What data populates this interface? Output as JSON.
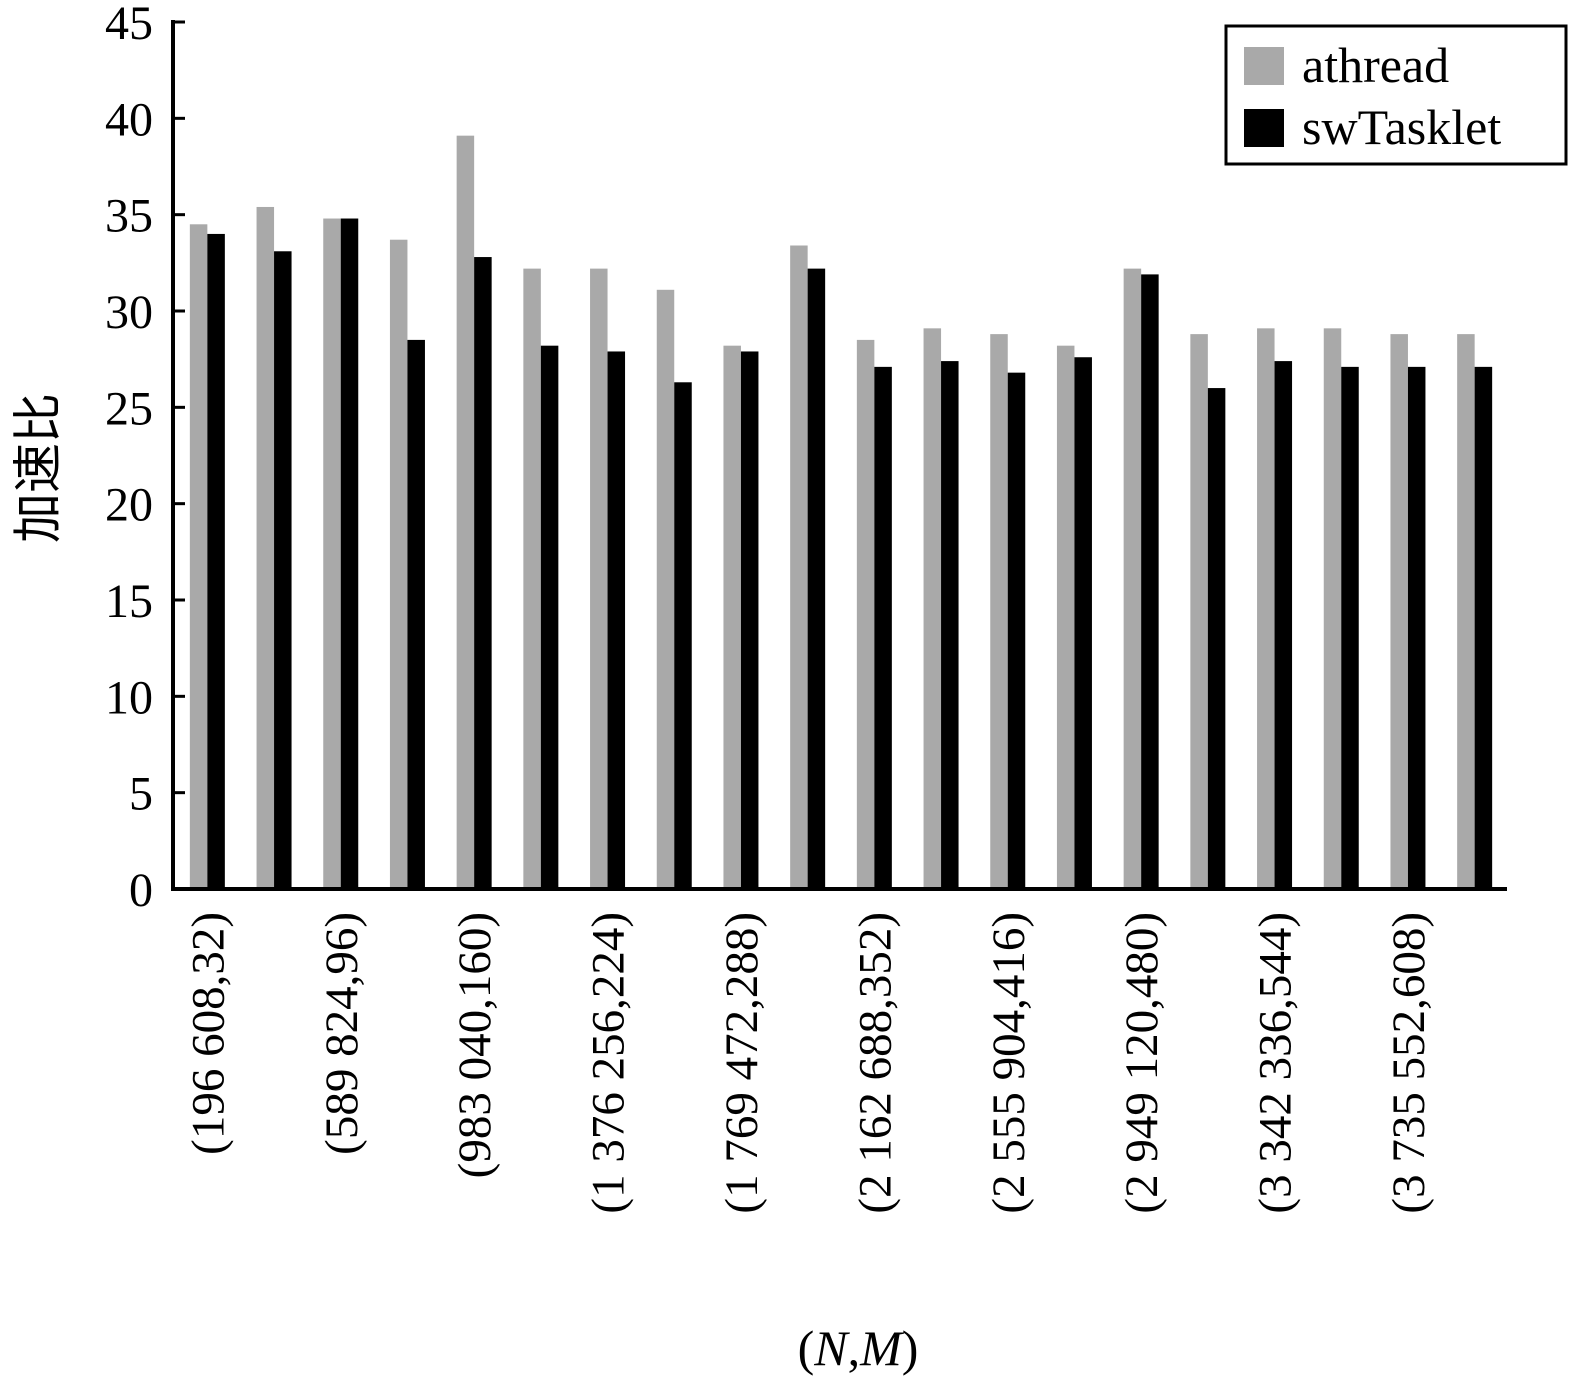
{
  "chart_data": {
    "type": "bar",
    "title": "",
    "ylabel": "加速比",
    "xlabel": "(N,M)",
    "ylim": [
      0,
      45
    ],
    "y_ticks": [
      "0",
      "5",
      "10",
      "15",
      "20",
      "25",
      "30",
      "35",
      "40",
      "45"
    ],
    "categories": [
      "(196 608,32)",
      "",
      "(589 824,96)",
      "",
      "(983 040,160)",
      "",
      "(1 376 256,224)",
      "",
      "(1 769 472,288)",
      "",
      "(2 162 688,352)",
      "",
      "(2 555 904,416)",
      "",
      "(2 949 120,480)",
      "",
      "(3 342 336,544)",
      "",
      "(3 735 552,608)",
      ""
    ],
    "labeled_categories": [
      "(196 608,32)",
      "(589 824,96)",
      "(983 040,160)",
      "(1 376 256,224)",
      "(1 769 472,288)",
      "(2 162 688,352)",
      "(2 555 904,416)",
      "(2 949 120,480)",
      "(3 342 336,544)",
      "(3 735 552,608)"
    ],
    "series": [
      {
        "name": "athread",
        "color": "#a9a9a9",
        "values": [
          34.5,
          35.4,
          34.8,
          33.7,
          39.1,
          32.2,
          32.2,
          31.1,
          28.2,
          33.4,
          28.5,
          29.1,
          28.8,
          28.2,
          32.2,
          28.8,
          29.1,
          29.1,
          28.8,
          28.8
        ]
      },
      {
        "name": "swTasklet",
        "color": "#000000",
        "values": [
          34.0,
          33.1,
          34.8,
          28.5,
          32.8,
          28.2,
          27.9,
          26.3,
          27.9,
          32.2,
          27.1,
          27.4,
          26.8,
          27.6,
          31.9,
          26.0,
          27.4,
          27.1,
          27.1,
          27.1
        ]
      }
    ],
    "legend_position": "top-right",
    "grid": false
  }
}
